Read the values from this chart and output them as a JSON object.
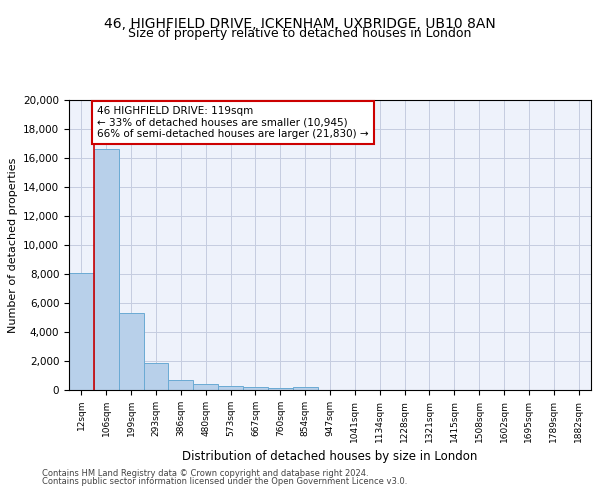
{
  "title1": "46, HIGHFIELD DRIVE, ICKENHAM, UXBRIDGE, UB10 8AN",
  "title2": "Size of property relative to detached houses in London",
  "xlabel": "Distribution of detached houses by size in London",
  "ylabel": "Number of detached properties",
  "bar_labels": [
    "12sqm",
    "106sqm",
    "199sqm",
    "293sqm",
    "386sqm",
    "480sqm",
    "573sqm",
    "667sqm",
    "760sqm",
    "854sqm",
    "947sqm",
    "1041sqm",
    "1134sqm",
    "1228sqm",
    "1321sqm",
    "1415sqm",
    "1508sqm",
    "1602sqm",
    "1695sqm",
    "1789sqm",
    "1882sqm"
  ],
  "bar_values": [
    8100,
    16600,
    5300,
    1850,
    700,
    380,
    270,
    210,
    170,
    200,
    0,
    0,
    0,
    0,
    0,
    0,
    0,
    0,
    0,
    0,
    0
  ],
  "bar_color": "#b8d0ea",
  "bar_edge_color": "#6aaad4",
  "vline_color": "#cc0000",
  "annotation_title": "46 HIGHFIELD DRIVE: 119sqm",
  "annotation_line2": "← 33% of detached houses are smaller (10,945)",
  "annotation_line3": "66% of semi-detached houses are larger (21,830) →",
  "annotation_box_color": "#cc0000",
  "ylim": [
    0,
    20000
  ],
  "yticks": [
    0,
    2000,
    4000,
    6000,
    8000,
    10000,
    12000,
    14000,
    16000,
    18000,
    20000
  ],
  "footer1": "Contains HM Land Registry data © Crown copyright and database right 2024.",
  "footer2": "Contains public sector information licensed under the Open Government Licence v3.0.",
  "bg_color": "#eef2fb",
  "grid_color": "#c5cce0",
  "title1_fontsize": 10,
  "title2_fontsize": 9
}
